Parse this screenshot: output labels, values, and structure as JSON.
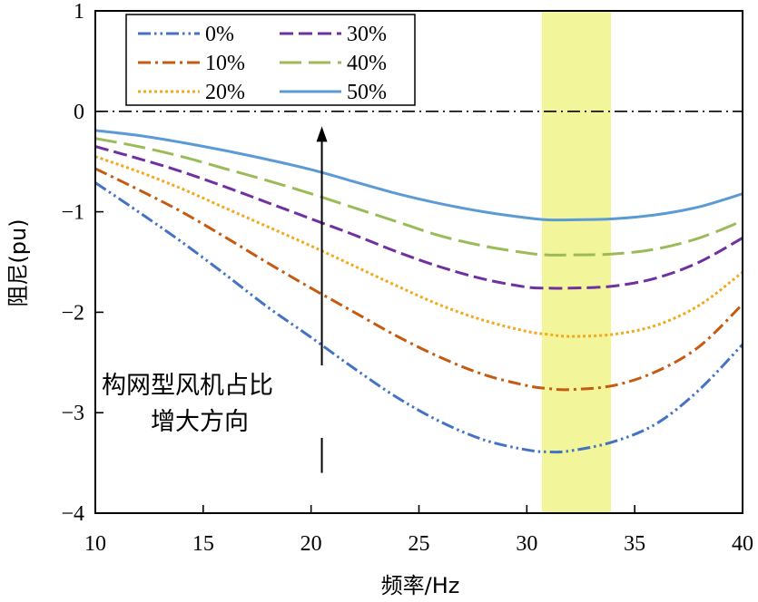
{
  "chart_data": {
    "type": "line",
    "xlabel": "频率/Hz",
    "ylabel": "阻尼(pu)",
    "xlim": [
      10,
      40
    ],
    "ylim": [
      -4,
      1
    ],
    "xticks": [
      10,
      15,
      20,
      25,
      30,
      35,
      40
    ],
    "yticks": [
      1,
      0,
      -1,
      -2,
      -3,
      -4
    ],
    "xtick_labels": [
      "10",
      "15",
      "20",
      "25",
      "30",
      "35",
      "40"
    ],
    "ytick_labels": [
      "1",
      "0",
      "−1",
      "−2",
      "−3",
      "−4"
    ],
    "x": [
      10,
      12,
      14,
      16,
      18,
      20,
      22,
      24,
      26,
      28,
      30,
      31,
      32,
      34,
      36,
      38,
      40
    ],
    "series": [
      {
        "name": "0%",
        "color": "#4472C4",
        "dash": "dashdotdot",
        "values": [
          -0.71,
          -1.0,
          -1.3,
          -1.62,
          -1.95,
          -2.25,
          -2.56,
          -2.85,
          -3.09,
          -3.27,
          -3.37,
          -3.39,
          -3.38,
          -3.29,
          -3.11,
          -2.77,
          -2.32
        ]
      },
      {
        "name": "10%",
        "color": "#C55A11",
        "dash": "dashdot",
        "values": [
          -0.57,
          -0.78,
          -1.0,
          -1.25,
          -1.51,
          -1.76,
          -2.0,
          -2.24,
          -2.45,
          -2.62,
          -2.73,
          -2.76,
          -2.77,
          -2.73,
          -2.59,
          -2.34,
          -1.92
        ]
      },
      {
        "name": "20%",
        "color": "#F4A81C",
        "dash": "dotted",
        "values": [
          -0.45,
          -0.6,
          -0.77,
          -0.96,
          -1.15,
          -1.34,
          -1.54,
          -1.74,
          -1.93,
          -2.08,
          -2.19,
          -2.22,
          -2.24,
          -2.22,
          -2.13,
          -1.93,
          -1.6
        ]
      },
      {
        "name": "30%",
        "color": "#7030A0",
        "dash": "dashed",
        "values": [
          -0.35,
          -0.47,
          -0.6,
          -0.75,
          -0.91,
          -1.07,
          -1.23,
          -1.4,
          -1.55,
          -1.67,
          -1.75,
          -1.76,
          -1.76,
          -1.74,
          -1.66,
          -1.5,
          -1.26
        ]
      },
      {
        "name": "40%",
        "color": "#9BBB59",
        "dash": "longdash",
        "values": [
          -0.27,
          -0.35,
          -0.45,
          -0.57,
          -0.69,
          -0.82,
          -0.96,
          -1.1,
          -1.24,
          -1.34,
          -1.41,
          -1.43,
          -1.43,
          -1.42,
          -1.37,
          -1.26,
          -1.09
        ]
      },
      {
        "name": "50%",
        "color": "#5B9BD5",
        "dash": "solid",
        "values": [
          -0.19,
          -0.24,
          -0.31,
          -0.39,
          -0.48,
          -0.58,
          -0.7,
          -0.82,
          -0.92,
          -1.0,
          -1.06,
          -1.08,
          -1.08,
          -1.07,
          -1.03,
          -0.95,
          -0.82
        ]
      }
    ],
    "reference_line": {
      "y": 0,
      "style": "dashdot",
      "color": "#000000"
    },
    "highlight_band": {
      "x_from": 30.7,
      "x_to": 33.9,
      "color": "#F2F59A"
    },
    "annotation": {
      "lines": [
        "构网型风机占比",
        "增大方向"
      ],
      "arrow_x": 20.5,
      "arrow_from_y": -3.6,
      "arrow_to_y": -0.15
    },
    "legend": {
      "placement": "top-left",
      "columns": 2
    },
    "grid": false
  }
}
